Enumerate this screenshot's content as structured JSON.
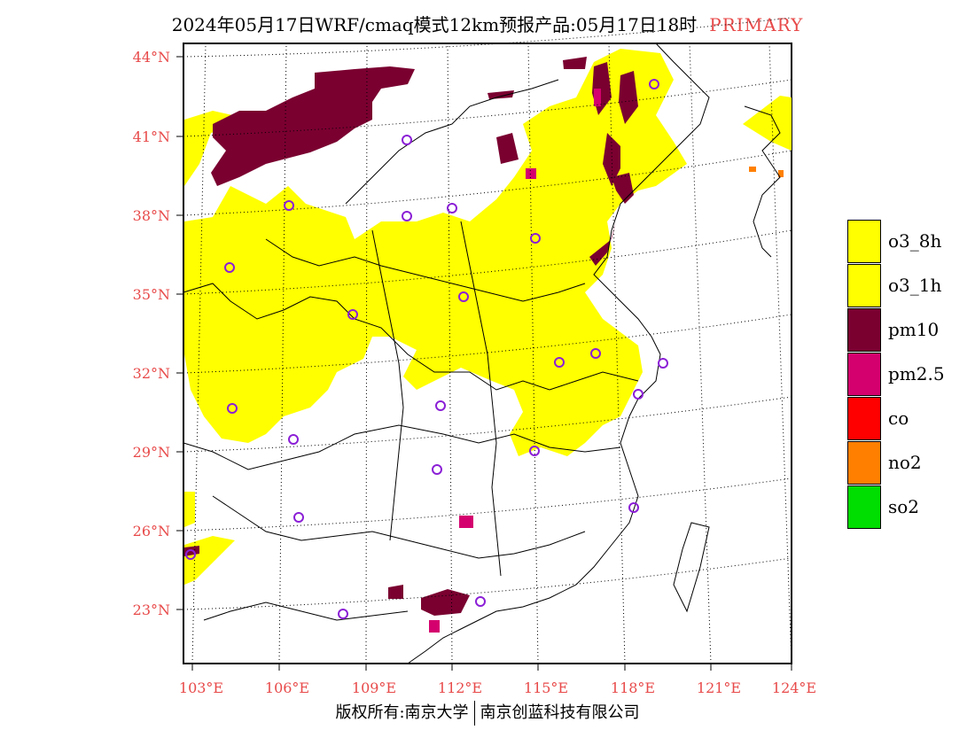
{
  "title": {
    "main": "2024年05月17日WRF/cmaq模式12km预报产品:05月17日18时",
    "tag": "PRIMARY"
  },
  "axes": {
    "lat_labels": [
      "44°N",
      "41°N",
      "38°N",
      "35°N",
      "32°N",
      "29°N",
      "26°N",
      "23°N"
    ],
    "lon_labels": [
      "103°E",
      "106°E",
      "109°E",
      "112°E",
      "115°E",
      "118°E",
      "121°E",
      "124°E"
    ]
  },
  "legend": [
    {
      "label": "o3_8h",
      "color": "#ffff00"
    },
    {
      "label": "o3_1h",
      "color": "#ffff00"
    },
    {
      "label": "pm10",
      "color": "#7a0030"
    },
    {
      "label": "pm2.5",
      "color": "#d4006e"
    },
    {
      "label": "co",
      "color": "#ff0000"
    },
    {
      "label": "no2",
      "color": "#ff8000"
    },
    {
      "label": "so2",
      "color": "#00dd00"
    }
  ],
  "footer": {
    "left": "版权所有:南京大学",
    "right": "南京创蓝科技有限公司"
  }
}
